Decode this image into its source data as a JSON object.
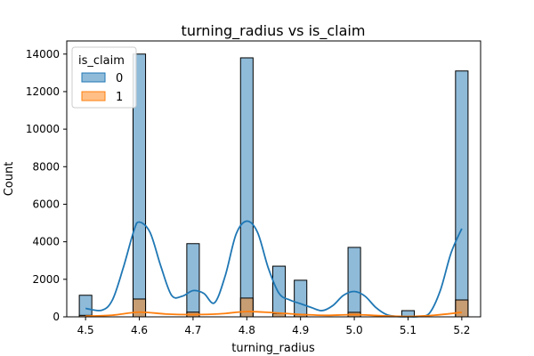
{
  "chart_data": {
    "type": "histogram",
    "title": "turning_radius vs is_claim",
    "xlabel": "turning_radius",
    "ylabel": "Count",
    "xlim": [
      4.465,
      5.235
    ],
    "ylim": [
      0,
      14700
    ],
    "x_ticks": [
      4.5,
      4.6,
      4.7,
      4.8,
      4.9,
      5.0,
      5.1,
      5.2
    ],
    "x_tick_labels": [
      "4.5",
      "4.6",
      "4.7",
      "4.8",
      "4.9",
      "5.0",
      "5.1",
      "5.2"
    ],
    "y_ticks": [
      0,
      2000,
      4000,
      6000,
      8000,
      10000,
      12000,
      14000
    ],
    "y_tick_labels": [
      "0",
      "2000",
      "4000",
      "6000",
      "8000",
      "10000",
      "12000",
      "14000"
    ],
    "legend": {
      "title": "is_claim",
      "position": "top-left",
      "entries": [
        "0",
        "1"
      ]
    },
    "bin_width": 0.0233,
    "series": [
      {
        "name": "0",
        "color": "#1f77b4",
        "bars": [
          {
            "x": 4.5,
            "value": 1150
          },
          {
            "x": 4.6,
            "value": 14000
          },
          {
            "x": 4.7,
            "value": 3900
          },
          {
            "x": 4.8,
            "value": 13800
          },
          {
            "x": 4.86,
            "value": 2700
          },
          {
            "x": 4.9,
            "value": 1950
          },
          {
            "x": 5.0,
            "value": 3700
          },
          {
            "x": 5.1,
            "value": 330
          },
          {
            "x": 5.2,
            "value": 13100
          }
        ],
        "kde": [
          [
            4.5,
            450
          ],
          [
            4.53,
            350
          ],
          [
            4.55,
            900
          ],
          [
            4.57,
            2600
          ],
          [
            4.59,
            4600
          ],
          [
            4.6,
            5050
          ],
          [
            4.62,
            4500
          ],
          [
            4.64,
            2700
          ],
          [
            4.66,
            1150
          ],
          [
            4.68,
            1100
          ],
          [
            4.7,
            1400
          ],
          [
            4.72,
            1250
          ],
          [
            4.74,
            750
          ],
          [
            4.76,
            2200
          ],
          [
            4.78,
            4400
          ],
          [
            4.8,
            5100
          ],
          [
            4.82,
            4500
          ],
          [
            4.84,
            2600
          ],
          [
            4.86,
            1250
          ],
          [
            4.88,
            900
          ],
          [
            4.9,
            700
          ],
          [
            4.92,
            500
          ],
          [
            4.94,
            330
          ],
          [
            4.96,
            600
          ],
          [
            4.98,
            1150
          ],
          [
            5.0,
            1350
          ],
          [
            5.02,
            1100
          ],
          [
            5.04,
            500
          ],
          [
            5.06,
            120
          ],
          [
            5.08,
            20
          ],
          [
            5.1,
            10
          ],
          [
            5.12,
            20
          ],
          [
            5.14,
            200
          ],
          [
            5.16,
            1400
          ],
          [
            5.18,
            3400
          ],
          [
            5.2,
            4700
          ]
        ]
      },
      {
        "name": "1",
        "color": "#ff7f0e",
        "bars": [
          {
            "x": 4.5,
            "value": 80
          },
          {
            "x": 4.6,
            "value": 950
          },
          {
            "x": 4.7,
            "value": 250
          },
          {
            "x": 4.8,
            "value": 1000
          },
          {
            "x": 4.86,
            "value": 180
          },
          {
            "x": 4.9,
            "value": 130
          },
          {
            "x": 5.0,
            "value": 240
          },
          {
            "x": 5.1,
            "value": 25
          },
          {
            "x": 5.2,
            "value": 900
          }
        ],
        "kde": [
          [
            4.5,
            40
          ],
          [
            4.55,
            90
          ],
          [
            4.6,
            250
          ],
          [
            4.65,
            150
          ],
          [
            4.7,
            120
          ],
          [
            4.75,
            160
          ],
          [
            4.8,
            280
          ],
          [
            4.85,
            220
          ],
          [
            4.9,
            130
          ],
          [
            4.95,
            80
          ],
          [
            5.0,
            120
          ],
          [
            5.05,
            60
          ],
          [
            5.1,
            20
          ],
          [
            5.15,
            90
          ],
          [
            5.2,
            240
          ]
        ]
      }
    ]
  }
}
